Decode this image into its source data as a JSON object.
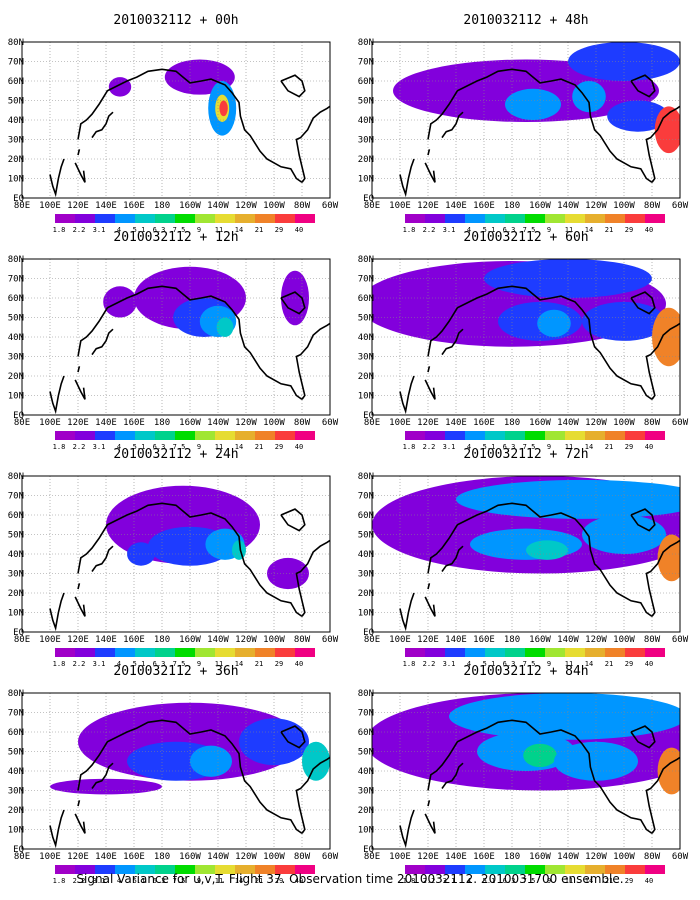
{
  "footer": "Signal Variance for u,v,T. Flight 37. Observation time 2010032112. 2010031700 ensemble.",
  "colors": {
    "levels": [
      "1.8",
      "2.2",
      "3.1",
      "4",
      "5.1",
      "6.3",
      "7.5",
      "9",
      "11",
      "14",
      "21",
      "29",
      "40"
    ],
    "swatches": [
      "#a000c8",
      "#8200dc",
      "#1e3cff",
      "#0096ff",
      "#00c8c8",
      "#00d28c",
      "#00dc00",
      "#a0e632",
      "#e6dc32",
      "#e6af2d",
      "#f08228",
      "#fa3c3c",
      "#f00082"
    ]
  },
  "chart_data": [
    {
      "type": "heatmap",
      "title": "2010032112 + 00h",
      "x_ticks": [
        "80E",
        "100E",
        "120E",
        "140E",
        "160E",
        "180",
        "160W",
        "140W",
        "120W",
        "100W",
        "80W",
        "60W"
      ],
      "y_ticks": [
        "EQ",
        "10N",
        "20N",
        "30N",
        "40N",
        "50N",
        "60N",
        "70N",
        "80N"
      ],
      "colorbar_labels": [
        "1.8",
        "2.2",
        "3.1",
        "4",
        "5.1",
        "6.3",
        "7.5",
        "9",
        "11",
        "14",
        "21",
        "29",
        "40"
      ],
      "blobs": [
        {
          "lon": -153,
          "lat": 62,
          "rlon": 25,
          "rlat": 9,
          "level": 1
        },
        {
          "lon": -137,
          "lat": 46,
          "rlon": 10,
          "rlat": 14,
          "level": 3
        },
        {
          "lon": -137,
          "lat": 46,
          "rlon": 5,
          "rlat": 7,
          "level": 8
        },
        {
          "lon": -136,
          "lat": 46,
          "rlon": 3,
          "rlat": 4,
          "level": 11
        },
        {
          "lon": 150,
          "lat": 57,
          "rlon": 8,
          "rlat": 5,
          "level": 1
        }
      ]
    },
    {
      "type": "heatmap",
      "title": "2010032112 + 48h",
      "x_ticks": [
        "80E",
        "100E",
        "120E",
        "140E",
        "160E",
        "180",
        "160W",
        "140W",
        "120W",
        "100W",
        "80W",
        "60W"
      ],
      "y_ticks": [
        "EQ",
        "10N",
        "20N",
        "30N",
        "40N",
        "50N",
        "60N",
        "70N",
        "80N"
      ],
      "colorbar_labels": [
        "1.8",
        "2.2",
        "3.1",
        "4",
        "5.1",
        "6.3",
        "7.5",
        "9",
        "11",
        "14",
        "21",
        "29",
        "40"
      ],
      "blobs": [
        {
          "lon": -170,
          "lat": 55,
          "rlon": 95,
          "rlat": 16,
          "level": 1
        },
        {
          "lon": -100,
          "lat": 70,
          "rlon": 40,
          "rlat": 10,
          "level": 2
        },
        {
          "lon": -165,
          "lat": 48,
          "rlon": 20,
          "rlat": 8,
          "level": 3
        },
        {
          "lon": -125,
          "lat": 52,
          "rlon": 12,
          "rlat": 8,
          "level": 3
        },
        {
          "lon": -90,
          "lat": 42,
          "rlon": 22,
          "rlat": 8,
          "level": 2
        },
        {
          "lon": -68,
          "lat": 35,
          "rlon": 10,
          "rlat": 12,
          "level": 11
        }
      ]
    },
    {
      "type": "heatmap",
      "title": "2010032112 + 12h",
      "x_ticks": [
        "80E",
        "100E",
        "120E",
        "140E",
        "160E",
        "180",
        "160W",
        "140W",
        "120W",
        "100W",
        "80W",
        "60W"
      ],
      "y_ticks": [
        "EQ",
        "10N",
        "20N",
        "30N",
        "40N",
        "50N",
        "60N",
        "70N",
        "80N"
      ],
      "colorbar_labels": [
        "1.8",
        "2.2",
        "3.1",
        "4",
        "5.1",
        "6.3",
        "7.5",
        "9",
        "11",
        "14",
        "21",
        "29",
        "40"
      ],
      "blobs": [
        {
          "lon": -160,
          "lat": 60,
          "rlon": 40,
          "rlat": 16,
          "level": 1
        },
        {
          "lon": -150,
          "lat": 50,
          "rlon": 22,
          "rlat": 10,
          "level": 2
        },
        {
          "lon": -140,
          "lat": 48,
          "rlon": 13,
          "rlat": 8,
          "level": 3
        },
        {
          "lon": -135,
          "lat": 45,
          "rlon": 6,
          "rlat": 5,
          "level": 4
        },
        {
          "lon": -85,
          "lat": 60,
          "rlon": 10,
          "rlat": 14,
          "level": 1
        },
        {
          "lon": 150,
          "lat": 58,
          "rlon": 12,
          "rlat": 8,
          "level": 1
        }
      ]
    },
    {
      "type": "heatmap",
      "title": "2010032112 + 60h",
      "x_ticks": [
        "80E",
        "100E",
        "120E",
        "140E",
        "160E",
        "180",
        "160W",
        "140W",
        "120W",
        "100W",
        "80W",
        "60W"
      ],
      "y_ticks": [
        "EQ",
        "10N",
        "20N",
        "30N",
        "40N",
        "50N",
        "60N",
        "70N",
        "80N"
      ],
      "colorbar_labels": [
        "1.8",
        "2.2",
        "3.1",
        "4",
        "5.1",
        "6.3",
        "7.5",
        "9",
        "11",
        "14",
        "21",
        "29",
        "40"
      ],
      "blobs": [
        {
          "lon": -180,
          "lat": 57,
          "rlon": 110,
          "rlat": 22,
          "level": 1
        },
        {
          "lon": -140,
          "lat": 70,
          "rlon": 60,
          "rlat": 10,
          "level": 2
        },
        {
          "lon": -160,
          "lat": 48,
          "rlon": 30,
          "rlat": 10,
          "level": 2
        },
        {
          "lon": -150,
          "lat": 47,
          "rlon": 12,
          "rlat": 7,
          "level": 3
        },
        {
          "lon": -100,
          "lat": 48,
          "rlon": 30,
          "rlat": 10,
          "level": 2
        },
        {
          "lon": -68,
          "lat": 40,
          "rlon": 12,
          "rlat": 15,
          "level": 10
        }
      ]
    },
    {
      "type": "heatmap",
      "title": "2010032112 + 24h",
      "x_ticks": [
        "80E",
        "100E",
        "120E",
        "140E",
        "160E",
        "180",
        "160W",
        "140W",
        "120W",
        "100W",
        "80W",
        "60W"
      ],
      "y_ticks": [
        "EQ",
        "10N",
        "20N",
        "30N",
        "40N",
        "50N",
        "60N",
        "70N",
        "80N"
      ],
      "colorbar_labels": [
        "1.8",
        "2.2",
        "3.1",
        "4",
        "5.1",
        "6.3",
        "7.5",
        "9",
        "11",
        "14",
        "21",
        "29",
        "40"
      ],
      "blobs": [
        {
          "lon": -165,
          "lat": 55,
          "rlon": 55,
          "rlat": 20,
          "level": 1
        },
        {
          "lon": -160,
          "lat": 44,
          "rlon": 30,
          "rlat": 10,
          "level": 2
        },
        {
          "lon": -135,
          "lat": 45,
          "rlon": 14,
          "rlat": 8,
          "level": 3
        },
        {
          "lon": -125,
          "lat": 42,
          "rlon": 5,
          "rlat": 5,
          "level": 4
        },
        {
          "lon": -90,
          "lat": 30,
          "rlon": 15,
          "rlat": 8,
          "level": 1
        },
        {
          "lon": 165,
          "lat": 40,
          "rlon": 10,
          "rlat": 6,
          "level": 2
        }
      ]
    },
    {
      "type": "heatmap",
      "title": "2010032112 + 72h",
      "x_ticks": [
        "80E",
        "100E",
        "120E",
        "140E",
        "160E",
        "180",
        "160W",
        "140W",
        "120W",
        "100W",
        "80W",
        "60W"
      ],
      "y_ticks": [
        "EQ",
        "10N",
        "20N",
        "30N",
        "40N",
        "50N",
        "60N",
        "70N",
        "80N"
      ],
      "colorbar_labels": [
        "1.8",
        "2.2",
        "3.1",
        "4",
        "5.1",
        "6.3",
        "7.5",
        "9",
        "11",
        "14",
        "21",
        "29",
        "40"
      ],
      "blobs": [
        {
          "lon": -160,
          "lat": 55,
          "rlon": 120,
          "rlat": 25,
          "level": 1
        },
        {
          "lon": -130,
          "lat": 68,
          "rlon": 90,
          "rlat": 10,
          "level": 3
        },
        {
          "lon": -170,
          "lat": 45,
          "rlon": 40,
          "rlat": 8,
          "level": 3
        },
        {
          "lon": -155,
          "lat": 42,
          "rlon": 15,
          "rlat": 5,
          "level": 4
        },
        {
          "lon": -100,
          "lat": 50,
          "rlon": 30,
          "rlat": 10,
          "level": 3
        },
        {
          "lon": -66,
          "lat": 38,
          "rlon": 10,
          "rlat": 12,
          "level": 10
        }
      ]
    },
    {
      "type": "heatmap",
      "title": "2010032112 + 36h",
      "x_ticks": [
        "80E",
        "100E",
        "120E",
        "140E",
        "160E",
        "180",
        "160W",
        "140W",
        "120W",
        "100W",
        "80W",
        "60W"
      ],
      "y_ticks": [
        "EQ",
        "10N",
        "20N",
        "30N",
        "40N",
        "50N",
        "60N",
        "70N",
        "80N"
      ],
      "colorbar_labels": [
        "1.8",
        "2.2",
        "3.1",
        "4",
        "5.1",
        "6.3",
        "7.5",
        "9",
        "11",
        "14",
        "21",
        "29",
        "40"
      ],
      "blobs": [
        {
          "lon": -160,
          "lat": 55,
          "rlon": 80,
          "rlat": 20,
          "level": 1
        },
        {
          "lon": -170,
          "lat": 45,
          "rlon": 35,
          "rlat": 10,
          "level": 2
        },
        {
          "lon": -145,
          "lat": 45,
          "rlon": 15,
          "rlat": 8,
          "level": 3
        },
        {
          "lon": 140,
          "lat": 32,
          "rlon": 40,
          "rlat": 4,
          "level": 1
        },
        {
          "lon": -100,
          "lat": 55,
          "rlon": 25,
          "rlat": 12,
          "level": 2
        },
        {
          "lon": -70,
          "lat": 45,
          "rlon": 10,
          "rlat": 10,
          "level": 4
        }
      ]
    },
    {
      "type": "heatmap",
      "title": "2010032112 + 84h",
      "x_ticks": [
        "80E",
        "100E",
        "120E",
        "140E",
        "160E",
        "180",
        "160W",
        "140W",
        "120W",
        "100W",
        "80W",
        "60W"
      ],
      "y_ticks": [
        "EQ",
        "10N",
        "20N",
        "30N",
        "40N",
        "50N",
        "60N",
        "70N",
        "80N"
      ],
      "colorbar_labels": [
        "1.8",
        "2.2",
        "3.1",
        "4",
        "5.1",
        "6.3",
        "7.5",
        "9",
        "11",
        "14",
        "21",
        "29",
        "40"
      ],
      "blobs": [
        {
          "lon": -160,
          "lat": 55,
          "rlon": 125,
          "rlat": 25,
          "level": 1
        },
        {
          "lon": -140,
          "lat": 68,
          "rlon": 85,
          "rlat": 12,
          "level": 3
        },
        {
          "lon": -170,
          "lat": 50,
          "rlon": 35,
          "rlat": 10,
          "level": 3
        },
        {
          "lon": -160,
          "lat": 48,
          "rlon": 12,
          "rlat": 6,
          "level": 5
        },
        {
          "lon": -120,
          "lat": 45,
          "rlon": 30,
          "rlat": 10,
          "level": 3
        },
        {
          "lon": -66,
          "lat": 40,
          "rlon": 10,
          "rlat": 12,
          "level": 10
        }
      ]
    }
  ]
}
